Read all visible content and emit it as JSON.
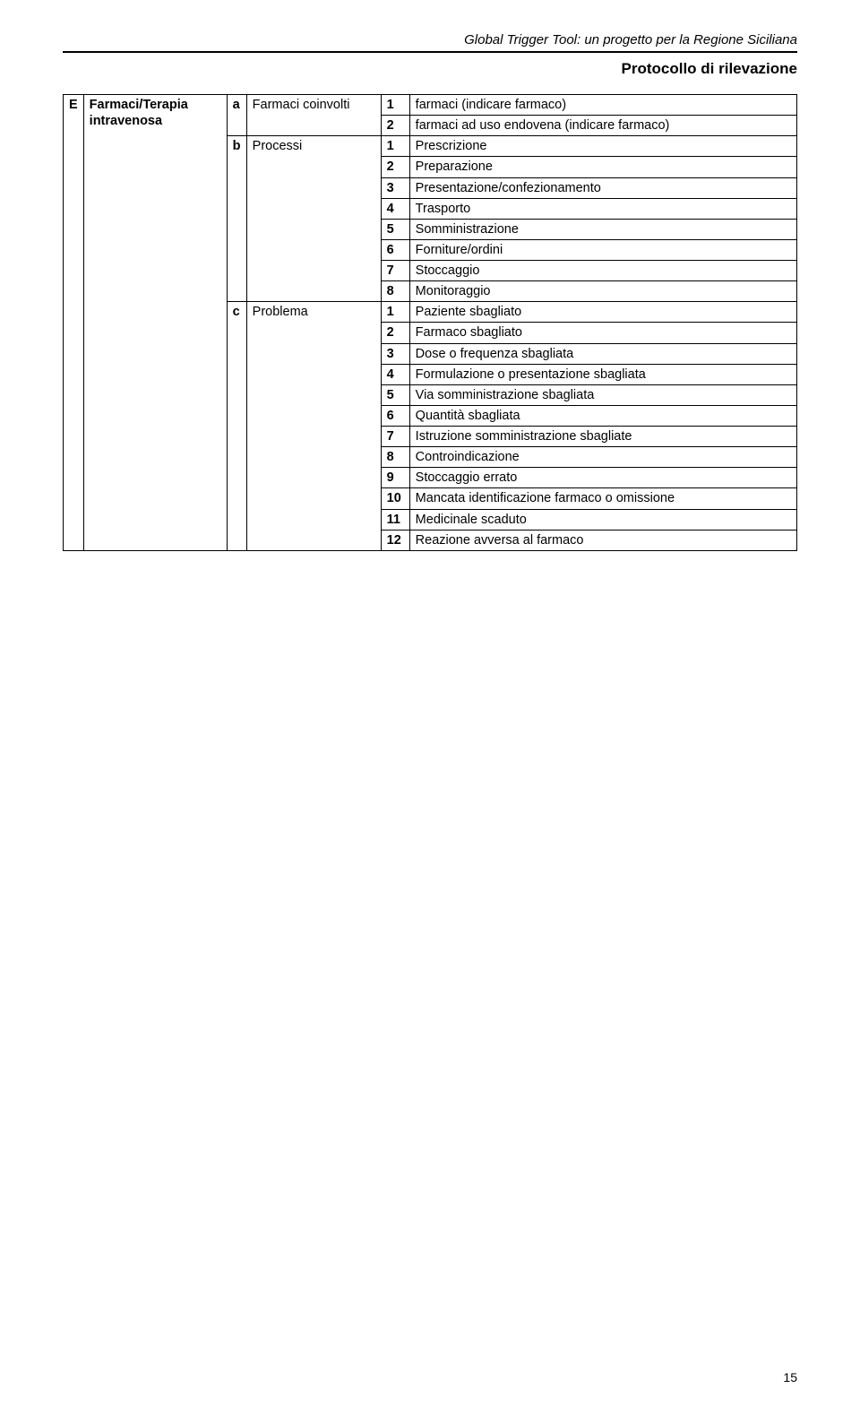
{
  "header": {
    "doc_title": "Global Trigger Tool: un progetto per la Regione Siciliana",
    "section_title": "Protocollo di rilevazione"
  },
  "table": {
    "col_e": "E",
    "category": "Farmaci/Terapia intravenosa",
    "groups": [
      {
        "letter": "a",
        "label": "Farmaci coinvolti",
        "rows": [
          {
            "n": "1",
            "text": "farmaci (indicare farmaco)"
          },
          {
            "n": "2",
            "text": "farmaci ad uso endovena (indicare farmaco)"
          }
        ]
      },
      {
        "letter": "b",
        "label": "Processi",
        "rows": [
          {
            "n": "1",
            "text": "Prescrizione"
          },
          {
            "n": "2",
            "text": "Preparazione"
          },
          {
            "n": "3",
            "text": "Presentazione/confezionamento"
          },
          {
            "n": "4",
            "text": "Trasporto"
          },
          {
            "n": "5",
            "text": "Somministrazione"
          },
          {
            "n": "6",
            "text": "Forniture/ordini"
          },
          {
            "n": "7",
            "text": "Stoccaggio"
          },
          {
            "n": "8",
            "text": "Monitoraggio"
          }
        ]
      },
      {
        "letter": "c",
        "label": "Problema",
        "rows": [
          {
            "n": "1",
            "text": "Paziente sbagliato"
          },
          {
            "n": "2",
            "text": "Farmaco sbagliato"
          },
          {
            "n": "3",
            "text": "Dose o frequenza sbagliata"
          },
          {
            "n": "4",
            "text": "Formulazione o presentazione sbagliata"
          },
          {
            "n": "5",
            "text": "Via somministrazione sbagliata"
          },
          {
            "n": "6",
            "text": "Quantità sbagliata"
          },
          {
            "n": "7",
            "text": "Istruzione somministrazione sbagliate"
          },
          {
            "n": "8",
            "text": "Controindicazione"
          },
          {
            "n": "9",
            "text": "Stoccaggio errato"
          },
          {
            "n": "10",
            "text": "Mancata identificazione farmaco o omissione"
          },
          {
            "n": "11",
            "text": "Medicinale scaduto"
          },
          {
            "n": "12",
            "text": "Reazione avversa al farmaco"
          }
        ]
      }
    ]
  },
  "page_number": "15"
}
